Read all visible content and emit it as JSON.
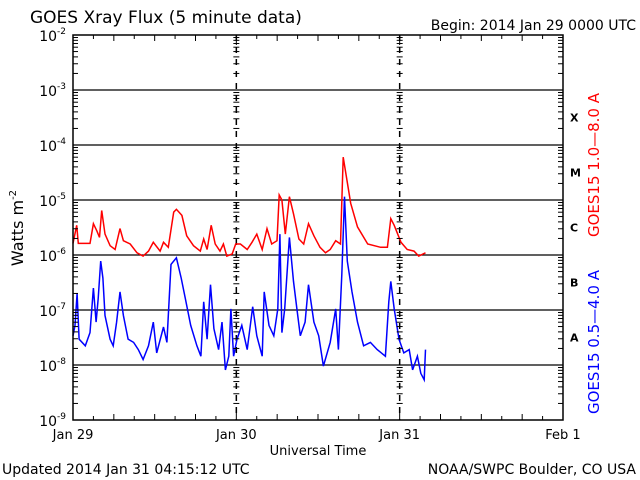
{
  "header": {
    "title": "GOES Xray Flux (5 minute data)",
    "begin": "Begin:  2014 Jan 29 0000 UTC"
  },
  "footer": {
    "updated": "Updated 2014 Jan 31 04:15:12 UTC",
    "credit": "NOAA/SWPC Boulder, CO USA"
  },
  "chart_data": {
    "type": "line",
    "title": "GOES Xray Flux (5 minute data)",
    "xlabel": "Universal Time",
    "ylabel": "Watts m",
    "ylabel_exp": "-2",
    "yscale": "log",
    "ylim_exp": [
      -9,
      -2
    ],
    "xlim_hours": [
      0,
      72
    ],
    "x_units": "hours since 2014 Jan 29 00:00 UTC",
    "x_ticks": [
      {
        "label": "Jan 29",
        "hour": 0
      },
      {
        "label": "Jan 30",
        "hour": 24
      },
      {
        "label": "Jan 31",
        "hour": 48
      },
      {
        "label": "Feb 1",
        "hour": 72
      }
    ],
    "y_ticks": [
      {
        "base": "10",
        "exp": "-2",
        "value": -2
      },
      {
        "base": "10",
        "exp": "-3",
        "value": -3
      },
      {
        "base": "10",
        "exp": "-4",
        "value": -4
      },
      {
        "base": "10",
        "exp": "-5",
        "value": -5
      },
      {
        "base": "10",
        "exp": "-6",
        "value": -6
      },
      {
        "base": "10",
        "exp": "-7",
        "value": -7
      },
      {
        "base": "10",
        "exp": "-8",
        "value": -8
      },
      {
        "base": "10",
        "exp": "-9",
        "value": -9
      }
    ],
    "flare_classes": [
      {
        "label": "X",
        "value": -3.5
      },
      {
        "label": "M",
        "value": -4.5
      },
      {
        "label": "C",
        "value": -5.5
      },
      {
        "label": "B",
        "value": -6.5
      },
      {
        "label": "A",
        "value": -7.5
      }
    ],
    "grid": true,
    "series": [
      {
        "name": "GOES15 1.0—8.0 A",
        "color": "#ff0000",
        "x": [
          0,
          0.54,
          0.78,
          2.5,
          3.0,
          3.5,
          3.9,
          4.22,
          4.7,
          5.45,
          6.18,
          6.9,
          7.4,
          8.4,
          9.4,
          10.3,
          11.1,
          11.8,
          12.8,
          13.3,
          14.0,
          14.8,
          15.2,
          16.0,
          16.7,
          17.7,
          18.7,
          19.2,
          19.7,
          20.3,
          20.9,
          21.6,
          22.1,
          22.6,
          23.4,
          23.9,
          24.6,
          25.6,
          26.3,
          27.0,
          27.8,
          28.5,
          29.2,
          29.98,
          30.3,
          30.7,
          31.2,
          31.8,
          32.4,
          33.2,
          33.9,
          34.6,
          35.4,
          36.3,
          37.1,
          37.8,
          38.6,
          39.3,
          39.7,
          40.8,
          41.8,
          43.3,
          45.2,
          46.2,
          46.7,
          47.2,
          48.2,
          49.1,
          50.1,
          50.8,
          51.8
        ],
        "log_flux": [
          -5.79,
          -5.46,
          -5.79,
          -5.79,
          -5.43,
          -5.56,
          -5.68,
          -5.19,
          -5.62,
          -5.83,
          -5.9,
          -5.52,
          -5.74,
          -5.8,
          -5.96,
          -6.02,
          -5.93,
          -5.77,
          -5.93,
          -5.77,
          -5.86,
          -5.22,
          -5.17,
          -5.28,
          -5.65,
          -5.83,
          -5.93,
          -5.71,
          -5.9,
          -5.46,
          -5.8,
          -5.93,
          -5.8,
          -6.02,
          -5.98,
          -5.8,
          -5.8,
          -5.9,
          -5.77,
          -5.62,
          -5.9,
          -5.52,
          -5.8,
          -5.74,
          -4.91,
          -5.0,
          -5.62,
          -4.94,
          -5.25,
          -5.71,
          -5.8,
          -5.43,
          -5.65,
          -5.86,
          -5.96,
          -5.9,
          -5.74,
          -5.8,
          -4.22,
          -5.06,
          -5.49,
          -5.8,
          -5.86,
          -5.86,
          -5.34,
          -5.46,
          -5.77,
          -5.9,
          -5.93,
          -6.02,
          -5.96
        ]
      },
      {
        "name": "GOES15 0.5—4.0 A",
        "color": "#0000ff",
        "x": [
          0,
          0.3,
          0.6,
          0.9,
          1.8,
          2.5,
          3.0,
          3.4,
          3.7,
          4.07,
          4.4,
          4.7,
          5.45,
          5.9,
          6.4,
          6.9,
          7.4,
          8.1,
          8.9,
          9.6,
          10.3,
          11.1,
          11.8,
          12.3,
          13.3,
          13.8,
          14.4,
          15.2,
          15.9,
          16.5,
          17.3,
          18.2,
          18.8,
          19.2,
          19.7,
          20.2,
          20.7,
          21.4,
          21.9,
          22.4,
          22.9,
          23.2,
          23.6,
          24.1,
          24.8,
          25.6,
          26.4,
          27.0,
          27.8,
          28.1,
          28.8,
          29.5,
          30.1,
          30.4,
          30.7,
          31.1,
          31.8,
          32.4,
          32.9,
          33.4,
          34.1,
          34.6,
          35.4,
          36.1,
          36.8,
          37.8,
          38.6,
          39.0,
          39.5,
          39.9,
          40.3,
          41.0,
          41.8,
          42.7,
          43.7,
          44.7,
          45.9,
          46.4,
          46.7,
          47.2,
          47.9,
          48.6,
          49.4,
          49.9,
          50.6,
          51.1,
          51.6,
          51.8
        ],
        "log_flux": [
          -7.47,
          -7.28,
          -6.7,
          -7.53,
          -7.65,
          -7.41,
          -6.6,
          -7.22,
          -6.79,
          -6.11,
          -6.42,
          -7.1,
          -7.53,
          -7.65,
          -7.22,
          -6.67,
          -7.1,
          -7.53,
          -7.59,
          -7.72,
          -7.9,
          -7.65,
          -7.22,
          -7.78,
          -7.31,
          -7.59,
          -6.17,
          -6.05,
          -6.42,
          -6.79,
          -7.28,
          -7.65,
          -7.84,
          -6.85,
          -7.53,
          -6.54,
          -7.34,
          -7.72,
          -7.22,
          -8.09,
          -7.84,
          -6.98,
          -7.84,
          -7.53,
          -7.28,
          -7.72,
          -6.94,
          -7.47,
          -7.84,
          -6.67,
          -7.28,
          -7.47,
          -6.98,
          -5.62,
          -7.41,
          -6.98,
          -5.68,
          -6.48,
          -6.98,
          -7.47,
          -7.22,
          -6.54,
          -7.22,
          -7.47,
          -8.02,
          -7.59,
          -6.98,
          -7.72,
          -6.36,
          -4.94,
          -6.11,
          -6.67,
          -7.22,
          -7.65,
          -7.59,
          -7.72,
          -7.84,
          -6.85,
          -6.48,
          -6.98,
          -7.53,
          -7.78,
          -7.72,
          -8.09,
          -7.84,
          -8.15,
          -8.27,
          -7.72
        ]
      }
    ]
  }
}
